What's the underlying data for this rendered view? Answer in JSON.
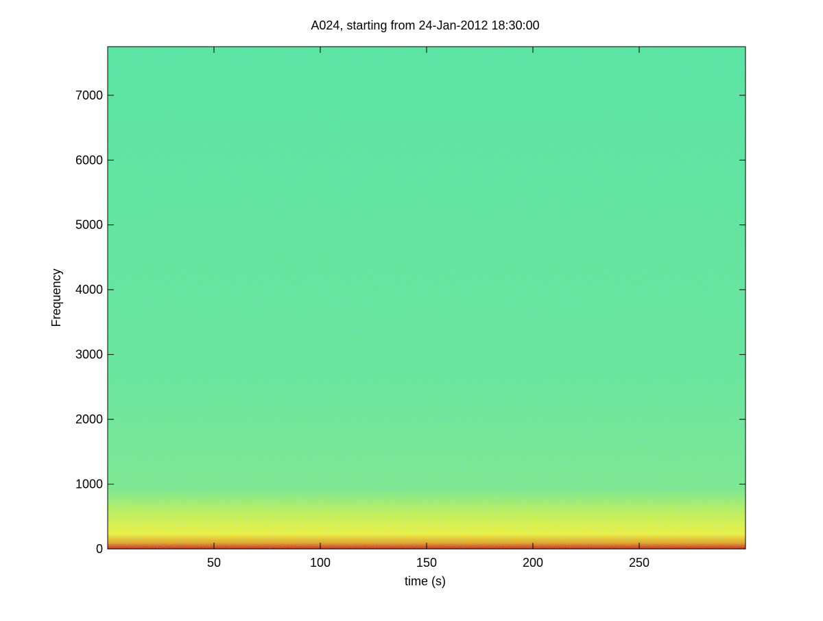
{
  "chart_data": {
    "type": "spectrogram",
    "title": "A024, starting from 24-Jan-2012 18:30:00",
    "x_label": "time (s)",
    "y_label": "Frequency",
    "xlim": [
      0,
      300
    ],
    "xticks": [
      50,
      100,
      150,
      200,
      250
    ],
    "ylim": [
      0,
      7750
    ],
    "yticks": [
      0,
      1000,
      2000,
      3000,
      4000,
      5000,
      6000,
      7000
    ],
    "grid": false
  }
}
